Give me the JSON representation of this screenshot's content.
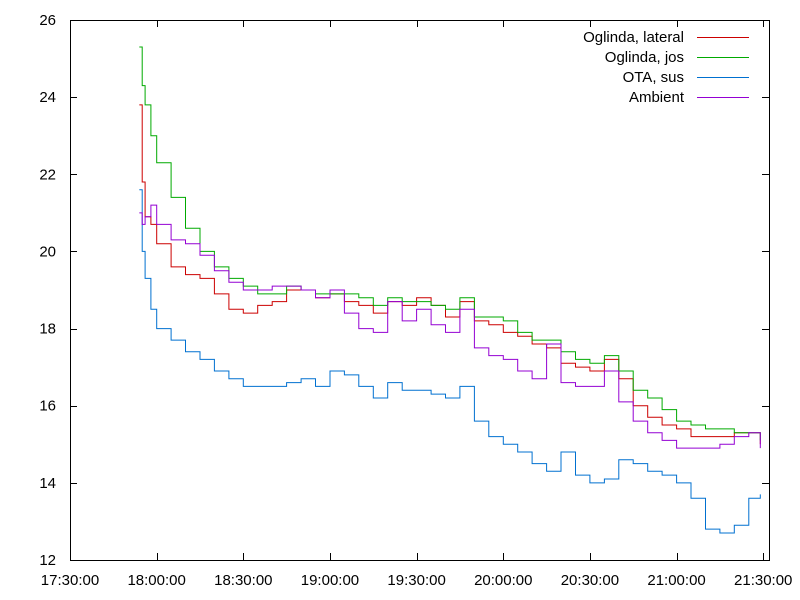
{
  "chart_data": {
    "type": "line",
    "title": "",
    "xlabel": "",
    "ylabel": "",
    "xlim": [
      "17:30:00",
      "21:32:00"
    ],
    "ylim": [
      12,
      26
    ],
    "grid": false,
    "legend_position": "top-right",
    "x_ticks": [
      "17:30:00",
      "18:00:00",
      "18:30:00",
      "19:00:00",
      "19:30:00",
      "20:00:00",
      "20:30:00",
      "21:00:00",
      "21:30:00"
    ],
    "y_ticks": [
      "12",
      "14",
      "16",
      "18",
      "20",
      "22",
      "24",
      "26"
    ],
    "x": [
      "17:54:00",
      "17:55:00",
      "17:56:00",
      "17:58:00",
      "18:00:00",
      "18:05:00",
      "18:10:00",
      "18:15:00",
      "18:20:00",
      "18:25:00",
      "18:30:00",
      "18:35:00",
      "18:40:00",
      "18:45:00",
      "18:50:00",
      "18:55:00",
      "19:00:00",
      "19:05:00",
      "19:10:00",
      "19:15:00",
      "19:20:00",
      "19:25:00",
      "19:30:00",
      "19:35:00",
      "19:40:00",
      "19:45:00",
      "19:50:00",
      "19:55:00",
      "20:00:00",
      "20:05:00",
      "20:10:00",
      "20:15:00",
      "20:20:00",
      "20:25:00",
      "20:30:00",
      "20:35:00",
      "20:40:00",
      "20:45:00",
      "20:50:00",
      "20:55:00",
      "21:00:00",
      "21:05:00",
      "21:10:00",
      "21:15:00",
      "21:20:00",
      "21:25:00",
      "21:29:00"
    ],
    "series": [
      {
        "name": "Oglinda, lateral",
        "color": "#cc0000",
        "values": [
          23.8,
          21.8,
          20.9,
          20.7,
          20.2,
          19.6,
          19.4,
          19.3,
          18.9,
          18.5,
          18.4,
          18.6,
          18.7,
          19.0,
          19.0,
          18.8,
          18.9,
          18.7,
          18.6,
          18.4,
          18.7,
          18.6,
          18.8,
          18.6,
          18.3,
          18.7,
          18.2,
          18.1,
          17.9,
          17.8,
          17.6,
          17.5,
          17.1,
          17.0,
          16.9,
          17.2,
          16.7,
          16.0,
          15.7,
          15.5,
          15.4,
          15.2,
          15.2,
          15.2,
          15.3,
          15.3,
          15.0
        ]
      },
      {
        "name": "Oglinda, jos",
        "color": "#00aa00",
        "values": [
          25.3,
          24.3,
          23.8,
          23.0,
          22.3,
          21.4,
          20.6,
          20.0,
          19.6,
          19.3,
          19.1,
          18.9,
          18.9,
          19.1,
          19.0,
          18.9,
          18.9,
          18.9,
          18.8,
          18.6,
          18.8,
          18.7,
          18.7,
          18.6,
          18.5,
          18.8,
          18.3,
          18.3,
          18.2,
          17.9,
          17.7,
          17.7,
          17.4,
          17.2,
          17.1,
          17.3,
          16.9,
          16.4,
          16.2,
          15.9,
          15.6,
          15.5,
          15.4,
          15.4,
          15.3,
          15.3,
          15.1
        ]
      },
      {
        "name": "OTA, sus",
        "color": "#0070d0",
        "values": [
          21.6,
          20.0,
          19.3,
          18.5,
          18.0,
          17.7,
          17.4,
          17.2,
          16.9,
          16.7,
          16.5,
          16.5,
          16.5,
          16.6,
          16.7,
          16.5,
          16.9,
          16.8,
          16.5,
          16.2,
          16.6,
          16.4,
          16.4,
          16.3,
          16.2,
          16.5,
          15.6,
          15.2,
          15.0,
          14.8,
          14.5,
          14.3,
          14.8,
          14.2,
          14.0,
          14.1,
          14.6,
          14.5,
          14.3,
          14.2,
          14.0,
          13.6,
          12.8,
          12.7,
          12.9,
          13.6,
          13.7
        ]
      },
      {
        "name": "Ambient",
        "color": "#9400d3",
        "values": [
          21.0,
          20.7,
          20.9,
          21.2,
          20.7,
          20.3,
          20.2,
          19.9,
          19.5,
          19.2,
          19.0,
          19.0,
          19.1,
          19.1,
          19.0,
          18.8,
          19.0,
          18.4,
          18.0,
          17.9,
          18.7,
          18.2,
          18.5,
          18.1,
          17.9,
          18.5,
          17.5,
          17.3,
          17.2,
          16.9,
          16.7,
          17.6,
          16.6,
          16.5,
          16.5,
          16.9,
          16.1,
          15.6,
          15.3,
          15.1,
          14.9,
          14.9,
          14.9,
          15.0,
          15.2,
          15.3,
          14.9
        ]
      }
    ]
  }
}
